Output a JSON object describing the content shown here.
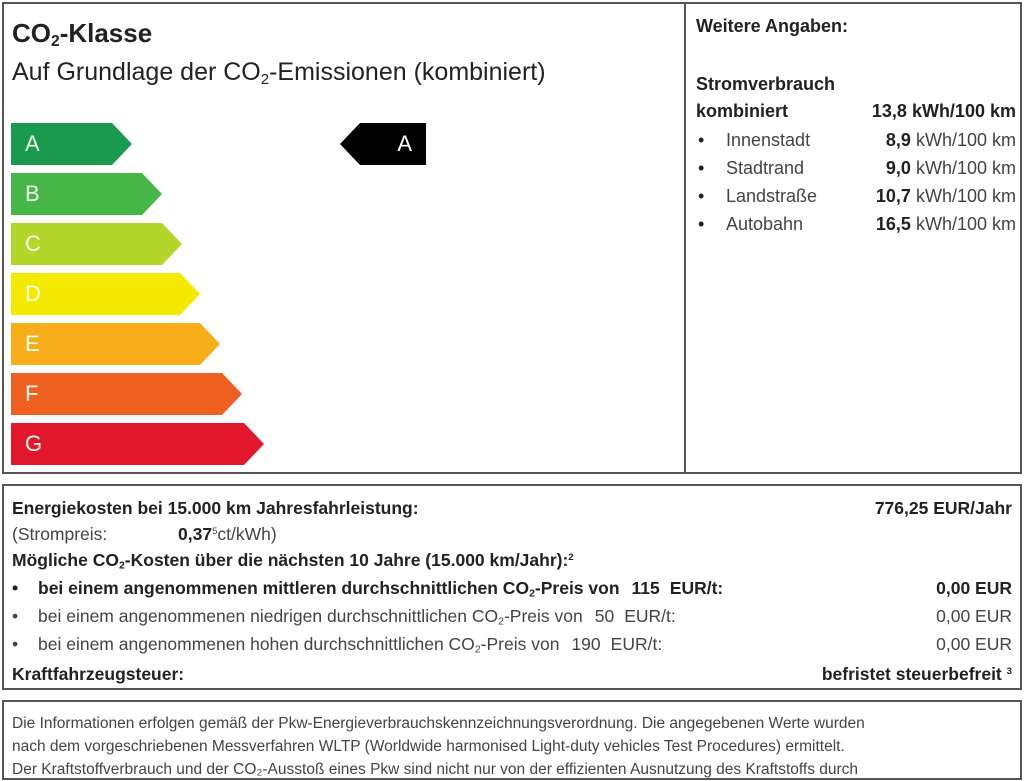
{
  "label": {
    "title_prefix": "CO",
    "title_sub": "2",
    "title_suffix": "-Klasse",
    "subtitle_prefix": "Auf Grundlage der CO",
    "subtitle_sub": "2",
    "subtitle_suffix": "-Emissionen (kombiniert)",
    "classes": [
      {
        "letter": "A",
        "color": "#1a9a4e"
      },
      {
        "letter": "B",
        "color": "#46b648"
      },
      {
        "letter": "C",
        "color": "#b3d62a"
      },
      {
        "letter": "D",
        "color": "#f4ea00"
      },
      {
        "letter": "E",
        "color": "#f7ad1a"
      },
      {
        "letter": "F",
        "color": "#ef5f1f"
      },
      {
        "letter": "G",
        "color": "#e3172c"
      }
    ],
    "current_class": "A",
    "indicator_color": "#000000"
  },
  "details": {
    "heading": "Weitere Angaben:",
    "consumption_heading": "Stromverbrauch",
    "combined_label": "kombiniert",
    "combined_value": "13,8 kWh/100 km",
    "bullet": "•",
    "items": [
      {
        "label": "Innenstadt",
        "value": "8,9",
        "unit": "kWh/100 km"
      },
      {
        "label": "Stadtrand",
        "value": "9,0",
        "unit": "kWh/100 km"
      },
      {
        "label": "Landstraße",
        "value": "10,7",
        "unit": "kWh/100 km"
      },
      {
        "label": "Autobahn",
        "value": "16,5",
        "unit": "kWh/100 km"
      }
    ]
  },
  "costs": {
    "energy_label": "Energiekosten bei 15.000 km Jahresfahrleistung:",
    "energy_value": "776,25 EUR/Jahr",
    "price_label": "(Strompreis:",
    "price_value": "0,37",
    "price_sup": "5",
    "price_unit": "ct/kWh)",
    "co2_heading_prefix": "Mögliche CO",
    "co2_heading_sub": "2",
    "co2_heading_suffix": "-Kosten über die nächsten 10 Jahre (15.000 km/Jahr):",
    "co2_heading_sup": "2",
    "scenarios": [
      {
        "prefix": "bei einem angenommenen mittleren durchschnittlichen CO",
        "suffix": "-Preis von",
        "price": "115",
        "unit": "EUR/t:",
        "value": "0,00 EUR",
        "bold": true
      },
      {
        "prefix": "bei einem angenommenen niedrigen durchschnittlichen CO",
        "suffix": "-Preis von",
        "price": "50",
        "unit": "EUR/t:",
        "value": "0,00 EUR",
        "bold": false
      },
      {
        "prefix": "bei einem angenommenen hohen durchschnittlichen CO",
        "suffix": "-Preis von",
        "price": "190",
        "unit": "EUR/t:",
        "value": "0,00 EUR",
        "bold": false
      }
    ],
    "tax_label": "Kraftfahrzeugsteuer:",
    "tax_value": "befristet steuerbefreit",
    "tax_sup": "3"
  },
  "footer": {
    "lines": [
      "Die Informationen erfolgen gemäß der Pkw-Energieverbrauchskennzeichnungsverordnung. Die angegebenen Werte wurden",
      "nach dem vorgeschriebenen Messverfahren WLTP (Worldwide harmonised Light-duty vehicles Test Procedures) ermittelt.",
      "Der Kraftstoffverbrauch und der CO₂-Ausstoß eines Pkw sind nicht nur von der effizienten Ausnutzung des Kraftstoffs durch"
    ]
  }
}
